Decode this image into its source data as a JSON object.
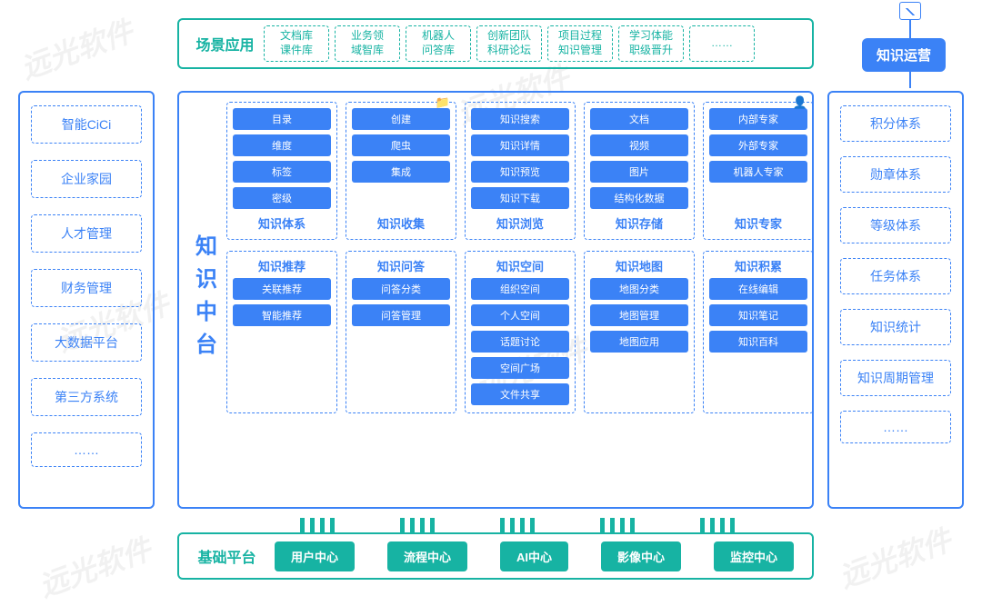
{
  "colors": {
    "teal": "#17b3a3",
    "blue": "#3b82f6",
    "lightblue": "#bcd6f7",
    "bg": "#ffffff"
  },
  "top": {
    "label": "场景应用",
    "cells": [
      [
        "文档库",
        "课件库"
      ],
      [
        "业务领",
        "域智库"
      ],
      [
        "机器人",
        "问答库"
      ],
      [
        "创新团队",
        "科研论坛"
      ],
      [
        "项目过程",
        "知识管理"
      ],
      [
        "学习体能",
        "职级晋升"
      ],
      [
        "……",
        ""
      ]
    ]
  },
  "ops": {
    "label": "知识运营"
  },
  "left": {
    "items": [
      "智能CiCi",
      "企业家园",
      "人才管理",
      "财务管理",
      "大数据平台",
      "第三方系统",
      "……"
    ]
  },
  "right": {
    "items": [
      "积分体系",
      "勋章体系",
      "等级体系",
      "任务体系",
      "知识统计",
      "知识周期管理",
      "……"
    ]
  },
  "center": {
    "title": "知识中台",
    "row1": [
      {
        "label": "知识体系",
        "pills": [
          "目录",
          "维度",
          "标签",
          "密级"
        ]
      },
      {
        "label": "知识收集",
        "pills": [
          "创建",
          "爬虫",
          "集成"
        ],
        "outlineTop": true,
        "icon": "📁"
      },
      {
        "label": "知识浏览",
        "pills": [
          "知识搜索",
          "知识详情",
          "知识预览",
          "知识下载"
        ]
      },
      {
        "label": "知识存储",
        "pills": [
          "文档",
          "视频",
          "图片",
          "结构化数据"
        ]
      },
      {
        "label": "知识专家",
        "pills": [
          "内部专家",
          "外部专家",
          "机器人专家"
        ],
        "icon": "👤"
      }
    ],
    "row2": [
      {
        "label": "知识推荐",
        "pills": [
          "关联推荐",
          "智能推荐"
        ]
      },
      {
        "label": "知识问答",
        "pills": [
          "问答分类",
          "问答管理"
        ]
      },
      {
        "label": "知识空间",
        "pills": [
          "组织空间",
          "个人空间",
          "话题讨论",
          "空间广场",
          "文件共享"
        ]
      },
      {
        "label": "知识地图",
        "pills": [
          "地图分类",
          "地图管理",
          "地图应用"
        ]
      },
      {
        "label": "知识积累",
        "pills": [
          "在线编辑",
          "知识笔记",
          "知识百科"
        ]
      }
    ]
  },
  "bottom": {
    "label": "基础平台",
    "cells": [
      "用户中心",
      "流程中心",
      "AI中心",
      "影像中心",
      "监控中心"
    ]
  }
}
